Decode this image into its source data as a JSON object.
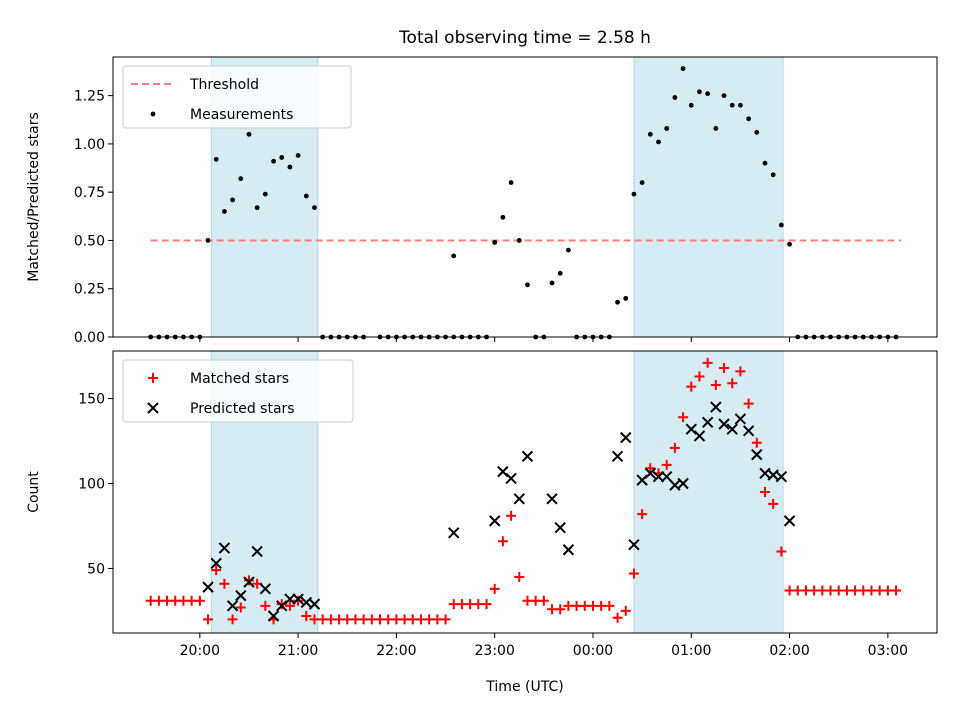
{
  "title": "Total observing time = 2.58 h",
  "colors": {
    "threshold": "#ff7f7f",
    "span": "#add8e6",
    "matched": "#ff0000",
    "predicted": "#000000",
    "measurements": "#000000"
  },
  "xaxis": {
    "label": "Time (UTC)",
    "ticks": [
      {
        "t": 20,
        "label": "20:00"
      },
      {
        "t": 21,
        "label": "21:00"
      },
      {
        "t": 22,
        "label": "22:00"
      },
      {
        "t": 23,
        "label": "23:00"
      },
      {
        "t": 24,
        "label": "00:00"
      },
      {
        "t": 25,
        "label": "01:00"
      },
      {
        "t": 26,
        "label": "02:00"
      },
      {
        "t": 27,
        "label": "03:00"
      }
    ],
    "range": [
      "19:07",
      "03:30"
    ]
  },
  "chart_data": [
    {
      "type": "scatter",
      "ylabel": "Matched/Predicted stars",
      "ylim": [
        0,
        1.45
      ],
      "yticks": [
        0.0,
        0.25,
        0.5,
        0.75,
        1.0,
        1.25
      ],
      "legend_position": "upper-left",
      "shaded_spans": [
        [
          "20:07",
          "21:12"
        ],
        [
          "00:25",
          "01:56"
        ]
      ],
      "threshold": {
        "name": "Threshold",
        "y": 0.5,
        "x_range": [
          "19:30",
          "03:08"
        ]
      },
      "series": [
        {
          "name": "Measurements",
          "points": [
            [
              "19:30",
              0
            ],
            [
              "19:35",
              0
            ],
            [
              "19:40",
              0
            ],
            [
              "19:45",
              0
            ],
            [
              "19:50",
              0
            ],
            [
              "19:55",
              0
            ],
            [
              "20:00",
              0
            ],
            [
              "20:05",
              0.5
            ],
            [
              "20:10",
              0.92
            ],
            [
              "20:15",
              0.65
            ],
            [
              "20:20",
              0.71
            ],
            [
              "20:25",
              0.82
            ],
            [
              "20:30",
              1.05
            ],
            [
              "20:35",
              0.67
            ],
            [
              "20:40",
              0.74
            ],
            [
              "20:45",
              0.91
            ],
            [
              "20:50",
              0.93
            ],
            [
              "20:55",
              0.88
            ],
            [
              "21:00",
              0.94
            ],
            [
              "21:05",
              0.73
            ],
            [
              "21:10",
              0.67
            ],
            [
              "21:15",
              0
            ],
            [
              "21:20",
              0
            ],
            [
              "21:25",
              0
            ],
            [
              "21:30",
              0
            ],
            [
              "21:35",
              0
            ],
            [
              "21:40",
              0
            ],
            [
              "21:50",
              0
            ],
            [
              "21:55",
              0
            ],
            [
              "22:00",
              0
            ],
            [
              "22:05",
              0
            ],
            [
              "22:10",
              0
            ],
            [
              "22:15",
              0
            ],
            [
              "22:20",
              0
            ],
            [
              "22:25",
              0
            ],
            [
              "22:30",
              0
            ],
            [
              "22:35",
              0
            ],
            [
              "22:35",
              0.42
            ],
            [
              "22:40",
              0
            ],
            [
              "22:45",
              0
            ],
            [
              "22:50",
              0
            ],
            [
              "22:55",
              0
            ],
            [
              "23:00",
              0.49
            ],
            [
              "23:05",
              0.62
            ],
            [
              "23:10",
              0.8
            ],
            [
              "23:15",
              0.5
            ],
            [
              "23:20",
              0.27
            ],
            [
              "23:25",
              0
            ],
            [
              "23:30",
              0
            ],
            [
              "23:35",
              0.28
            ],
            [
              "23:40",
              0.33
            ],
            [
              "23:45",
              0.45
            ],
            [
              "23:50",
              0
            ],
            [
              "23:55",
              0
            ],
            [
              "00:00",
              0
            ],
            [
              "00:05",
              0
            ],
            [
              "00:10",
              0
            ],
            [
              "00:15",
              0.18
            ],
            [
              "00:20",
              0.2
            ],
            [
              "00:25",
              0.74
            ],
            [
              "00:30",
              0.8
            ],
            [
              "00:35",
              1.05
            ],
            [
              "00:40",
              1.01
            ],
            [
              "00:45",
              1.08
            ],
            [
              "00:50",
              1.24
            ],
            [
              "00:55",
              1.39
            ],
            [
              "01:00",
              1.2
            ],
            [
              "01:05",
              1.27
            ],
            [
              "01:10",
              1.26
            ],
            [
              "01:15",
              1.08
            ],
            [
              "01:20",
              1.25
            ],
            [
              "01:25",
              1.2
            ],
            [
              "01:30",
              1.2
            ],
            [
              "01:35",
              1.13
            ],
            [
              "01:40",
              1.06
            ],
            [
              "01:45",
              0.9
            ],
            [
              "01:50",
              0.84
            ],
            [
              "01:55",
              0.58
            ],
            [
              "02:00",
              0.48
            ],
            [
              "02:05",
              0
            ],
            [
              "02:10",
              0
            ],
            [
              "02:15",
              0
            ],
            [
              "02:20",
              0
            ],
            [
              "02:25",
              0
            ],
            [
              "02:30",
              0
            ],
            [
              "02:35",
              0
            ],
            [
              "02:40",
              0
            ],
            [
              "02:45",
              0
            ],
            [
              "02:50",
              0
            ],
            [
              "02:55",
              0
            ],
            [
              "03:00",
              0
            ],
            [
              "03:05",
              0
            ]
          ]
        }
      ],
      "legend": [
        "Threshold",
        "Measurements"
      ]
    },
    {
      "type": "scatter",
      "ylabel": "Count",
      "ylim": [
        12,
        178
      ],
      "yticks": [
        50,
        100,
        150
      ],
      "legend_position": "upper-left",
      "shaded_spans": [
        [
          "20:07",
          "21:12"
        ],
        [
          "00:25",
          "01:56"
        ]
      ],
      "series": [
        {
          "name": "Matched stars",
          "marker": "plus",
          "points": [
            [
              "19:30",
              31
            ],
            [
              "19:35",
              31
            ],
            [
              "19:40",
              31
            ],
            [
              "19:45",
              31
            ],
            [
              "19:50",
              31
            ],
            [
              "19:55",
              31
            ],
            [
              "20:00",
              31
            ],
            [
              "20:05",
              20
            ],
            [
              "20:10",
              49
            ],
            [
              "20:15",
              41
            ],
            [
              "20:20",
              20
            ],
            [
              "20:25",
              27
            ],
            [
              "20:30",
              43
            ],
            [
              "20:35",
              41
            ],
            [
              "20:40",
              28
            ],
            [
              "20:45",
              20
            ],
            [
              "20:50",
              29
            ],
            [
              "20:55",
              28
            ],
            [
              "21:00",
              31
            ],
            [
              "21:05",
              22
            ],
            [
              "21:10",
              20
            ],
            [
              "21:15",
              20
            ],
            [
              "21:20",
              20
            ],
            [
              "21:25",
              20
            ],
            [
              "21:30",
              20
            ],
            [
              "21:35",
              20
            ],
            [
              "21:40",
              20
            ],
            [
              "21:45",
              20
            ],
            [
              "21:50",
              20
            ],
            [
              "21:55",
              20
            ],
            [
              "22:00",
              20
            ],
            [
              "22:05",
              20
            ],
            [
              "22:10",
              20
            ],
            [
              "22:15",
              20
            ],
            [
              "22:20",
              20
            ],
            [
              "22:25",
              20
            ],
            [
              "22:30",
              20
            ],
            [
              "22:35",
              29
            ],
            [
              "22:40",
              29
            ],
            [
              "22:45",
              29
            ],
            [
              "22:50",
              29
            ],
            [
              "22:55",
              29
            ],
            [
              "23:00",
              38
            ],
            [
              "23:05",
              66
            ],
            [
              "23:10",
              81
            ],
            [
              "23:15",
              45
            ],
            [
              "23:20",
              31
            ],
            [
              "23:25",
              31
            ],
            [
              "23:30",
              31
            ],
            [
              "23:35",
              26
            ],
            [
              "23:40",
              26
            ],
            [
              "23:45",
              28
            ],
            [
              "23:50",
              28
            ],
            [
              "23:55",
              28
            ],
            [
              "00:00",
              28
            ],
            [
              "00:05",
              28
            ],
            [
              "00:10",
              28
            ],
            [
              "00:15",
              21
            ],
            [
              "00:20",
              25
            ],
            [
              "00:25",
              47
            ],
            [
              "00:30",
              82
            ],
            [
              "00:35",
              109
            ],
            [
              "00:40",
              106
            ],
            [
              "00:45",
              111
            ],
            [
              "00:50",
              121
            ],
            [
              "00:55",
              139
            ],
            [
              "01:00",
              157
            ],
            [
              "01:05",
              163
            ],
            [
              "01:10",
              171
            ],
            [
              "01:15",
              158
            ],
            [
              "01:20",
              168
            ],
            [
              "01:25",
              159
            ],
            [
              "01:30",
              166
            ],
            [
              "01:35",
              147
            ],
            [
              "01:40",
              124
            ],
            [
              "01:45",
              95
            ],
            [
              "01:50",
              88
            ],
            [
              "01:55",
              60
            ],
            [
              "02:00",
              37
            ],
            [
              "02:05",
              37
            ],
            [
              "02:10",
              37
            ],
            [
              "02:15",
              37
            ],
            [
              "02:20",
              37
            ],
            [
              "02:25",
              37
            ],
            [
              "02:30",
              37
            ],
            [
              "02:35",
              37
            ],
            [
              "02:40",
              37
            ],
            [
              "02:45",
              37
            ],
            [
              "02:50",
              37
            ],
            [
              "02:55",
              37
            ],
            [
              "03:00",
              37
            ],
            [
              "03:05",
              37
            ]
          ]
        },
        {
          "name": "Predicted stars",
          "marker": "x",
          "points": [
            [
              "20:05",
              39
            ],
            [
              "20:10",
              53
            ],
            [
              "20:15",
              62
            ],
            [
              "20:20",
              28
            ],
            [
              "20:25",
              34
            ],
            [
              "20:30",
              42
            ],
            [
              "20:35",
              60
            ],
            [
              "20:40",
              38
            ],
            [
              "20:45",
              22
            ],
            [
              "20:50",
              28
            ],
            [
              "20:55",
              32
            ],
            [
              "21:00",
              32
            ],
            [
              "21:05",
              30
            ],
            [
              "21:10",
              29
            ],
            [
              "22:35",
              71
            ],
            [
              "23:00",
              78
            ],
            [
              "23:05",
              107
            ],
            [
              "23:10",
              103
            ],
            [
              "23:15",
              91
            ],
            [
              "23:20",
              116
            ],
            [
              "23:35",
              91
            ],
            [
              "23:40",
              74
            ],
            [
              "23:45",
              61
            ],
            [
              "00:15",
              116
            ],
            [
              "00:20",
              127
            ],
            [
              "00:25",
              64
            ],
            [
              "00:30",
              102
            ],
            [
              "00:35",
              106
            ],
            [
              "00:40",
              104
            ],
            [
              "00:45",
              104
            ],
            [
              "00:50",
              99
            ],
            [
              "00:55",
              100
            ],
            [
              "01:00",
              132
            ],
            [
              "01:05",
              128
            ],
            [
              "01:10",
              136
            ],
            [
              "01:15",
              145
            ],
            [
              "01:20",
              135
            ],
            [
              "01:25",
              132
            ],
            [
              "01:30",
              138
            ],
            [
              "01:35",
              131
            ],
            [
              "01:40",
              117
            ],
            [
              "01:45",
              106
            ],
            [
              "01:50",
              105
            ],
            [
              "01:55",
              104
            ],
            [
              "02:00",
              78
            ]
          ]
        }
      ],
      "legend": [
        "Matched stars",
        "Predicted stars"
      ]
    }
  ]
}
